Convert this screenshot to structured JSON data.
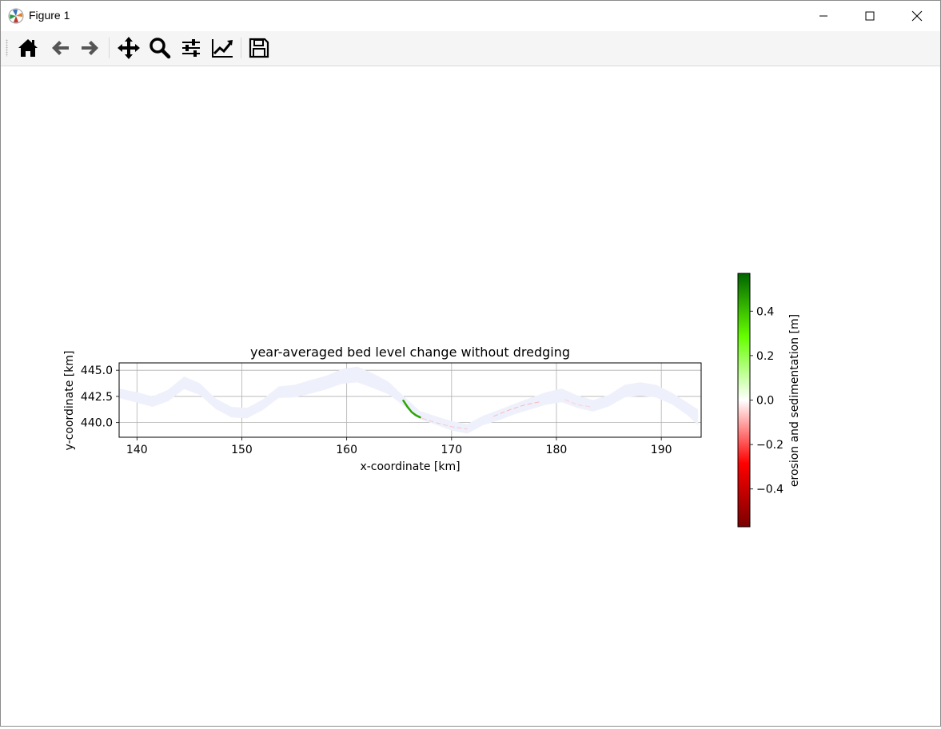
{
  "window": {
    "title": "Figure 1"
  },
  "toolbar": {
    "buttons": [
      {
        "name": "home-button",
        "icon": "home-icon"
      },
      {
        "name": "back-button",
        "icon": "arrow-left-icon"
      },
      {
        "name": "forward-button",
        "icon": "arrow-right-icon"
      },
      {
        "name": "pan-button",
        "icon": "move-arrows-icon"
      },
      {
        "name": "zoom-button",
        "icon": "magnifier-icon"
      },
      {
        "name": "configure-subplots-button",
        "icon": "sliders-icon"
      },
      {
        "name": "edit-axes-button",
        "icon": "line-chart-icon"
      },
      {
        "name": "save-button",
        "icon": "floppy-disk-icon"
      }
    ]
  },
  "chart_data": {
    "type": "heatmap",
    "title": "year-averaged bed level change without dredging",
    "xlabel": "x-coordinate [km]",
    "ylabel": "y-coordinate [km]",
    "xlim": [
      138.3,
      193.8
    ],
    "ylim": [
      438.6,
      445.7
    ],
    "xticks": [
      140,
      150,
      160,
      170,
      180,
      190
    ],
    "yticks": [
      440.0,
      442.5,
      445.0
    ],
    "xtick_labels": [
      "140",
      "150",
      "160",
      "170",
      "180",
      "190"
    ],
    "ytick_labels": [
      "440.0",
      "442.5",
      "445.0"
    ],
    "grid": true,
    "river_outline": {
      "x": [
        138.3,
        140,
        141.5,
        143,
        144.5,
        146,
        147.5,
        149,
        150.5,
        152,
        153.5,
        155,
        156.5,
        158,
        159.5,
        161,
        162.5,
        164,
        165.5,
        167,
        168.5,
        170,
        171.5,
        173,
        174.5,
        176,
        177.5,
        179,
        180.5,
        182,
        183.5,
        185,
        186.5,
        188,
        189.5,
        191,
        192.5,
        193.5
      ],
      "y": [
        442.8,
        442.4,
        442.0,
        442.6,
        443.8,
        443.2,
        441.8,
        441.0,
        440.9,
        441.7,
        442.9,
        443.0,
        443.4,
        443.8,
        444.4,
        444.6,
        444.0,
        443.3,
        442.0,
        440.7,
        440.2,
        439.7,
        439.4,
        440.2,
        440.7,
        441.3,
        441.8,
        442.3,
        442.6,
        442.0,
        441.6,
        442.1,
        443.0,
        443.2,
        443.0,
        442.3,
        441.3,
        440.5
      ],
      "width_km": [
        0.9,
        1.0,
        1.0,
        1.1,
        1.2,
        1.1,
        1.0,
        1.0,
        1.0,
        1.0,
        1.1,
        1.2,
        1.3,
        1.3,
        1.4,
        1.5,
        1.4,
        1.2,
        0.9,
        0.8,
        0.8,
        0.9,
        0.9,
        0.9,
        1.0,
        1.0,
        1.1,
        1.2,
        1.3,
        1.2,
        1.1,
        1.1,
        1.2,
        1.3,
        1.2,
        1.1,
        1.2,
        1.5
      ],
      "color": "#eef0fb"
    },
    "sedimentation_patch": {
      "x": [
        165.4,
        165.8,
        166.2,
        166.6,
        167.0
      ],
      "y": [
        442.1,
        441.5,
        441.0,
        440.7,
        440.5
      ],
      "value": 0.45
    },
    "erosion_traces": [
      {
        "x": [
          167.2,
          168.5,
          170.0,
          171.5
        ],
        "y": [
          440.4,
          440.0,
          439.6,
          439.4
        ],
        "value": -0.08
      },
      {
        "x": [
          174.0,
          175.5,
          177.0,
          178.5
        ],
        "y": [
          440.6,
          441.2,
          441.7,
          442.0
        ],
        "value": -0.1
      },
      {
        "x": [
          180.8,
          182.0,
          183.3
        ],
        "y": [
          442.2,
          441.7,
          441.5
        ],
        "value": -0.06
      }
    ],
    "colorbar": {
      "label": "erosion and sedimentation [m]",
      "vmin": -0.57,
      "vmax": 0.57,
      "ticks": [
        -0.4,
        -0.2,
        0.0,
        0.2,
        0.4
      ],
      "tick_labels": [
        "−0.4",
        "−0.2",
        "0.0",
        "0.2",
        "0.4"
      ],
      "colors": [
        "#7a0000",
        "#ff0000",
        "#ffffff",
        "#66ff00",
        "#006400"
      ]
    }
  }
}
